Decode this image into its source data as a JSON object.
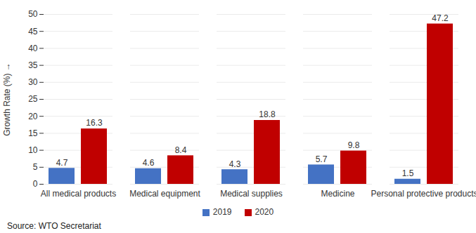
{
  "chart_data": {
    "type": "bar",
    "y_label": "Growth Rate (%)",
    "caption": "Source: WTO Secretariat",
    "categories": [
      "All medical products",
      "Medical equipment",
      "Medical supplies",
      "Medicine",
      "Personal protective products"
    ],
    "series": [
      {
        "name": "2019",
        "color": "#4472c4",
        "values": [
          4.7,
          4.6,
          4.3,
          5.7,
          1.5
        ]
      },
      {
        "name": "2020",
        "color": "#c00000",
        "values": [
          16.3,
          8.4,
          18.8,
          9.8,
          47.2
        ]
      }
    ],
    "ylim": [
      0,
      50
    ],
    "yticks": [
      0,
      5,
      10,
      15,
      20,
      25,
      30,
      35,
      40,
      45,
      50
    ],
    "grid": true,
    "data_labels": true,
    "legend": "bottom"
  }
}
